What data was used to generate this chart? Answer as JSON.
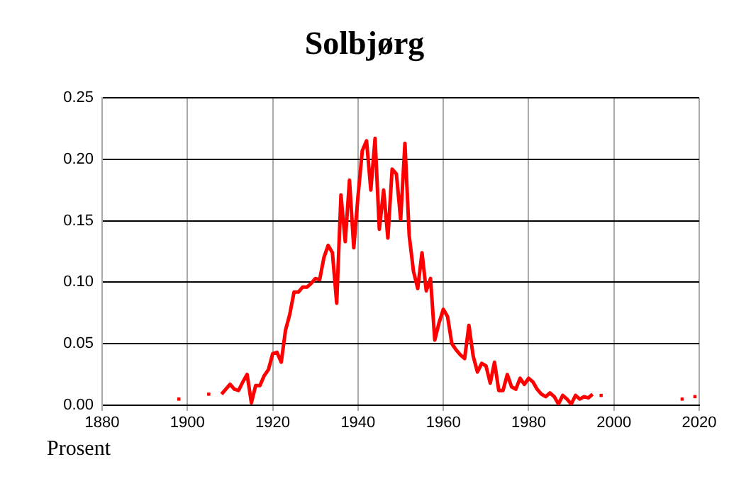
{
  "chart_data": {
    "type": "line",
    "title": "Solbjørg",
    "ylabel": "Prosent",
    "x": [
      1898,
      1899,
      1905,
      1906,
      1908,
      1909,
      1910,
      1911,
      1912,
      1913,
      1914,
      1915,
      1916,
      1917,
      1918,
      1919,
      1920,
      1921,
      1922,
      1923,
      1924,
      1925,
      1926,
      1927,
      1928,
      1929,
      1930,
      1931,
      1932,
      1933,
      1934,
      1935,
      1936,
      1937,
      1938,
      1939,
      1940,
      1941,
      1942,
      1943,
      1944,
      1945,
      1946,
      1947,
      1948,
      1949,
      1950,
      1951,
      1952,
      1953,
      1954,
      1955,
      1956,
      1957,
      1958,
      1959,
      1960,
      1961,
      1962,
      1963,
      1964,
      1965,
      1966,
      1967,
      1968,
      1969,
      1970,
      1971,
      1972,
      1973,
      1974,
      1975,
      1976,
      1977,
      1978,
      1979,
      1980,
      1981,
      1982,
      1983,
      1984,
      1985,
      1986,
      1987,
      1988,
      1989,
      1990,
      1991,
      1992,
      1993,
      1994,
      1995,
      1996,
      1997,
      1998,
      2016,
      2017,
      2019
    ],
    "series": [
      {
        "color": "#ff0000",
        "values": [
          0.005,
          null,
          0.009,
          null,
          0.009,
          0.013,
          0.017,
          0.013,
          0.012,
          0.019,
          0.025,
          0.002,
          0.016,
          0.016,
          0.024,
          0.029,
          0.042,
          0.043,
          0.035,
          0.061,
          0.074,
          0.092,
          0.092,
          0.096,
          0.096,
          0.099,
          0.103,
          0.102,
          0.12,
          0.13,
          0.124,
          0.083,
          0.171,
          0.133,
          0.183,
          0.128,
          0.17,
          0.207,
          0.215,
          0.175,
          0.217,
          0.143,
          0.175,
          0.136,
          0.192,
          0.188,
          0.151,
          0.213,
          0.138,
          0.109,
          0.095,
          0.124,
          0.093,
          0.103,
          0.053,
          0.067,
          0.078,
          0.072,
          0.05,
          0.045,
          0.041,
          0.038,
          0.065,
          0.04,
          0.027,
          0.034,
          0.032,
          0.018,
          0.035,
          0.012,
          0.012,
          0.025,
          0.015,
          0.013,
          0.022,
          0.017,
          0.022,
          0.019,
          0.013,
          0.009,
          0.007,
          0.01,
          0.007,
          0.001,
          0.008,
          0.005,
          0.001,
          0.008,
          0.005,
          0.007,
          0.006,
          0.009,
          null,
          0.008,
          null,
          0.005,
          null,
          0.007
        ]
      }
    ],
    "xlim": [
      1880,
      2020
    ],
    "xticks": [
      1880,
      1900,
      1920,
      1940,
      1960,
      1980,
      2000,
      2020
    ],
    "ylim": [
      0,
      0.25
    ],
    "yticks": [
      {
        "value": 0,
        "label": "0.00"
      },
      {
        "value": 0.05,
        "label": "0.05"
      },
      {
        "value": 0.1,
        "label": "0.10"
      },
      {
        "value": 0.15,
        "label": "0.15"
      },
      {
        "value": 0.2,
        "label": "0.20"
      },
      {
        "value": 0.25,
        "label": "0.25"
      }
    ],
    "grid": true,
    "legend": false,
    "line_style": "solid"
  }
}
